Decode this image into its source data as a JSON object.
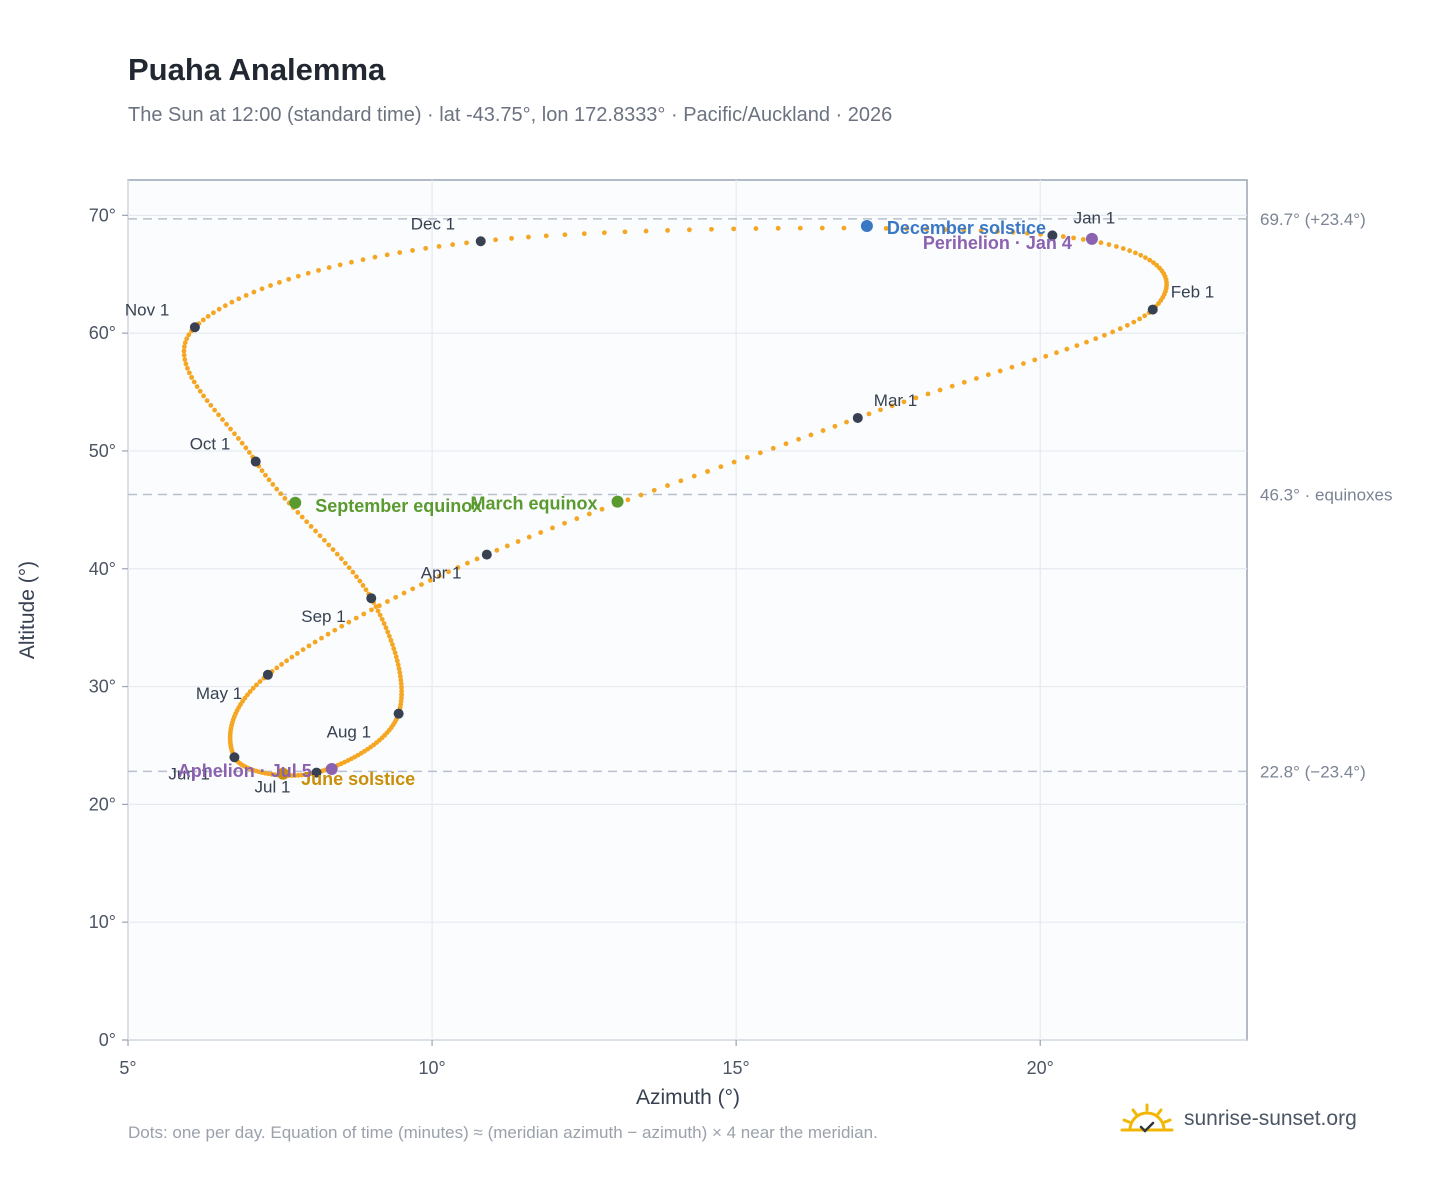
{
  "header": {
    "title": "Puaha Analemma",
    "subtitle": "The Sun at 12:00 (standard time) · lat -43.75°, lon 172.8333° · Pacific/Auckland · 2026"
  },
  "footnote": "Dots: one per day. Equation of time (minutes) ≈ (meridian azimuth − azimuth) × 4 near the meridian.",
  "brand": {
    "name": "sunrise-sunset.org",
    "icon": "sun-logo-icon",
    "color": "#f2b705"
  },
  "chart_data": {
    "type": "scatter",
    "xlabel": "Azimuth (°)",
    "ylabel": "Altitude (°)",
    "xlim": [
      5,
      23.4
    ],
    "ylim": [
      0,
      73
    ],
    "xticks": [
      5,
      10,
      15,
      20
    ],
    "xtick_labels": [
      "5°",
      "10°",
      "15°",
      "20°"
    ],
    "yticks": [
      0,
      10,
      20,
      30,
      40,
      50,
      60,
      70
    ],
    "ytick_labels": [
      "0°",
      "10°",
      "20°",
      "30°",
      "40°",
      "50°",
      "60°",
      "70°"
    ],
    "grid": true,
    "colors": {
      "path": "#f5a623",
      "month": "#374151",
      "equinox": "#5a9a2e",
      "december": "#3b78c4",
      "june": "#c98f0a",
      "apsis": "#8b62b0",
      "reference": "#b7c0cc"
    },
    "reference_lines": [
      {
        "y": 69.7,
        "label": "69.7° (+23.4°)"
      },
      {
        "y": 46.3,
        "label": "46.3° · equinoxes"
      },
      {
        "y": 22.8,
        "label": "22.8° (−23.4°)"
      }
    ],
    "month_anchors": [
      {
        "label": "Jan 1",
        "az": 20.2,
        "alt": 68.3
      },
      {
        "label": "Feb 1",
        "az": 21.85,
        "alt": 62.0
      },
      {
        "label": "Mar 1",
        "az": 17.0,
        "alt": 52.8
      },
      {
        "label": "Apr 1",
        "az": 10.9,
        "alt": 41.2
      },
      {
        "label": "May 1",
        "az": 7.3,
        "alt": 31.0
      },
      {
        "label": "Jun 1",
        "az": 6.75,
        "alt": 24.0
      },
      {
        "label": "Jul 1",
        "az": 8.1,
        "alt": 22.7
      },
      {
        "label": "Aug 1",
        "az": 9.45,
        "alt": 27.7
      },
      {
        "label": "Sep 1",
        "az": 9.0,
        "alt": 37.5
      },
      {
        "label": "Oct 1",
        "az": 7.1,
        "alt": 49.1
      },
      {
        "label": "Nov 1",
        "az": 6.1,
        "alt": 60.5
      },
      {
        "label": "Dec 1",
        "az": 10.8,
        "alt": 67.8
      }
    ],
    "events": [
      {
        "label": "December solstice",
        "az": 17.15,
        "alt": 69.1,
        "kind": "december"
      },
      {
        "label": "Perihelion · Jan 4",
        "az": 20.85,
        "alt": 68.0,
        "kind": "apsis"
      },
      {
        "label": "March equinox",
        "az": 13.05,
        "alt": 45.7,
        "kind": "equinox"
      },
      {
        "label": "September equinox",
        "az": 7.75,
        "alt": 45.6,
        "kind": "equinox"
      },
      {
        "label": "June solstice",
        "az": 7.55,
        "alt": 22.6,
        "kind": "june"
      },
      {
        "label": "Aphelion · Jul 5",
        "az": 8.35,
        "alt": 23.0,
        "kind": "apsis"
      }
    ]
  }
}
